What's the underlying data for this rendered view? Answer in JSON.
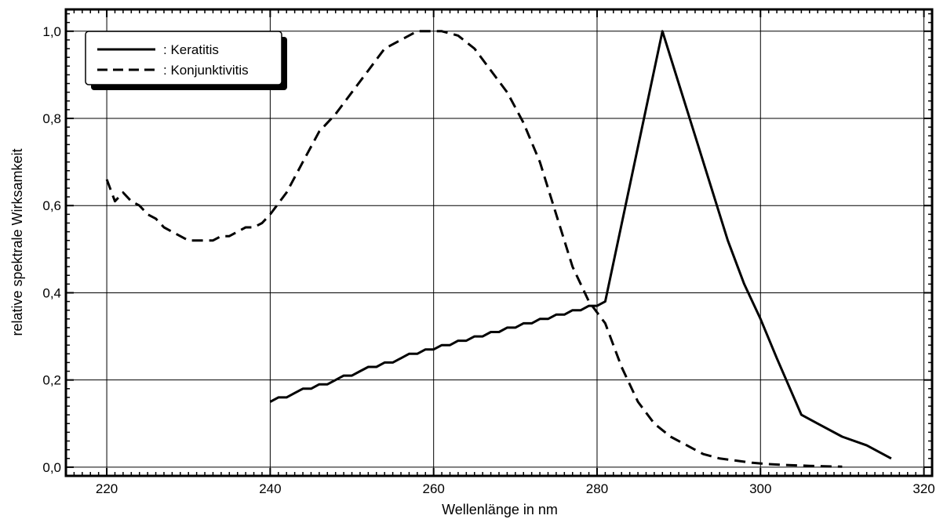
{
  "chart_data": {
    "type": "line",
    "title": "",
    "xlabel": "Wellenlänge in nm",
    "ylabel": "relative spektrale Wirksamkeit",
    "xlim": [
      215,
      321
    ],
    "ylim": [
      -0.02,
      1.05
    ],
    "x_ticks": [
      220,
      240,
      260,
      280,
      300,
      320
    ],
    "x_tick_labels": [
      "220",
      "240",
      "260",
      "280",
      "300",
      "320"
    ],
    "y_ticks": [
      0.0,
      0.2,
      0.4,
      0.6,
      0.8,
      1.0
    ],
    "y_tick_labels": [
      "0,0",
      "0,2",
      "0,4",
      "0,6",
      "0,8",
      "1,0"
    ],
    "grid": true,
    "legend_position": "top-left",
    "series": [
      {
        "name": ": Keratitis",
        "style": "solid",
        "color": "#000000",
        "x": [
          240,
          241,
          242,
          243,
          244,
          245,
          246,
          247,
          248,
          249,
          250,
          251,
          252,
          253,
          254,
          255,
          256,
          257,
          258,
          259,
          260,
          261,
          262,
          263,
          264,
          265,
          266,
          267,
          268,
          269,
          270,
          271,
          272,
          273,
          274,
          275,
          276,
          277,
          278,
          279,
          280,
          281,
          288,
          290,
          292,
          294,
          296,
          298,
          300,
          302,
          305,
          307,
          310,
          313,
          316
        ],
        "y": [
          0.15,
          0.16,
          0.16,
          0.17,
          0.18,
          0.18,
          0.19,
          0.19,
          0.2,
          0.21,
          0.21,
          0.22,
          0.23,
          0.23,
          0.24,
          0.24,
          0.25,
          0.26,
          0.26,
          0.27,
          0.27,
          0.28,
          0.28,
          0.29,
          0.29,
          0.3,
          0.3,
          0.31,
          0.31,
          0.32,
          0.32,
          0.33,
          0.33,
          0.34,
          0.34,
          0.35,
          0.35,
          0.36,
          0.36,
          0.37,
          0.37,
          0.38,
          1.0,
          0.88,
          0.76,
          0.64,
          0.52,
          0.42,
          0.34,
          0.25,
          0.12,
          0.1,
          0.07,
          0.05,
          0.02
        ]
      },
      {
        "name": ": Konjunktivitis",
        "style": "dashed",
        "color": "#000000",
        "x": [
          220,
          221,
          222,
          223,
          224,
          225,
          226,
          227,
          228,
          229,
          230,
          231,
          232,
          233,
          234,
          235,
          236,
          237,
          238,
          239,
          240,
          242,
          244,
          246,
          248,
          250,
          252,
          254,
          256,
          258,
          260,
          261,
          263,
          265,
          267,
          269,
          271,
          273,
          275,
          277,
          279,
          281,
          283,
          285,
          287,
          289,
          291,
          293,
          295,
          297,
          299,
          301,
          303,
          306,
          310
        ],
        "y": [
          0.66,
          0.61,
          0.63,
          0.61,
          0.6,
          0.58,
          0.57,
          0.55,
          0.54,
          0.53,
          0.52,
          0.52,
          0.52,
          0.52,
          0.53,
          0.53,
          0.54,
          0.55,
          0.55,
          0.56,
          0.58,
          0.63,
          0.7,
          0.77,
          0.81,
          0.86,
          0.91,
          0.96,
          0.98,
          1.0,
          1.0,
          1.0,
          0.99,
          0.96,
          0.91,
          0.86,
          0.79,
          0.7,
          0.58,
          0.46,
          0.38,
          0.33,
          0.23,
          0.15,
          0.1,
          0.07,
          0.05,
          0.03,
          0.02,
          0.015,
          0.01,
          0.007,
          0.005,
          0.003,
          0.001
        ]
      }
    ]
  }
}
